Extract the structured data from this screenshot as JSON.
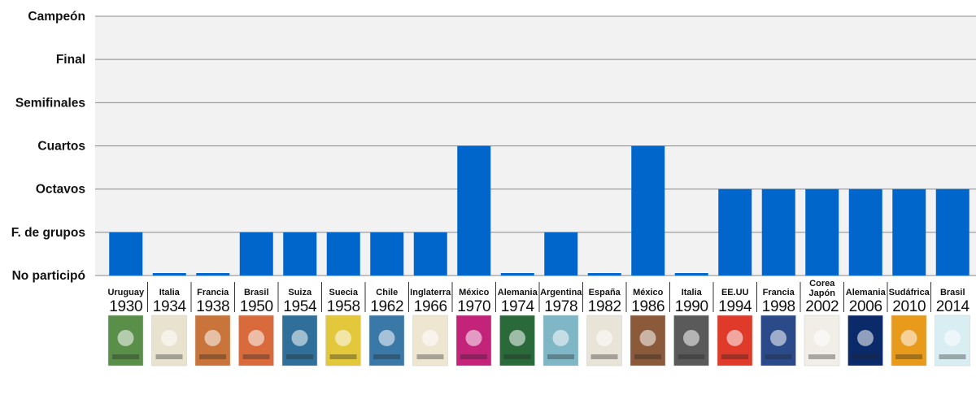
{
  "chart_data": {
    "type": "bar",
    "levels": [
      "No participó",
      "F. de grupos",
      "Octavos",
      "Cuartos",
      "Semifinales",
      "Final",
      "Campeón"
    ],
    "categories": [
      {
        "country": [
          "Uruguay"
        ],
        "year": "1930"
      },
      {
        "country": [
          "Italia"
        ],
        "year": "1934"
      },
      {
        "country": [
          "Francia"
        ],
        "year": "1938"
      },
      {
        "country": [
          "Brasil"
        ],
        "year": "1950"
      },
      {
        "country": [
          "Suiza"
        ],
        "year": "1954"
      },
      {
        "country": [
          "Suecia"
        ],
        "year": "1958"
      },
      {
        "country": [
          "Chile"
        ],
        "year": "1962"
      },
      {
        "country": [
          "Inglaterra"
        ],
        "year": "1966"
      },
      {
        "country": [
          "México"
        ],
        "year": "1970"
      },
      {
        "country": [
          "Alemania"
        ],
        "year": "1974"
      },
      {
        "country": [
          "Argentina"
        ],
        "year": "1978"
      },
      {
        "country": [
          "España"
        ],
        "year": "1982"
      },
      {
        "country": [
          "México"
        ],
        "year": "1986"
      },
      {
        "country": [
          "Italia"
        ],
        "year": "1990"
      },
      {
        "country": [
          "EE.UU"
        ],
        "year": "1994"
      },
      {
        "country": [
          "Francia"
        ],
        "year": "1998"
      },
      {
        "country": [
          "Corea",
          "Japón"
        ],
        "year": "2002"
      },
      {
        "country": [
          "Alemania"
        ],
        "year": "2006"
      },
      {
        "country": [
          "Sudáfrica"
        ],
        "year": "2010"
      },
      {
        "country": [
          "Brasil"
        ],
        "year": "2014"
      }
    ],
    "values": [
      1,
      0,
      0,
      1,
      1,
      1,
      1,
      1,
      3,
      0,
      1,
      0,
      3,
      0,
      2,
      2,
      2,
      2,
      2,
      2
    ],
    "ylim": [
      0,
      6
    ],
    "grid": true,
    "bar_color": "#0066cc",
    "band_color": "#f2f2f2",
    "grid_color": "#888888",
    "poster_colors": [
      "#5a8f4a",
      "#e9e2cf",
      "#c8743a",
      "#d86a3c",
      "#2f6f9a",
      "#e2c83a",
      "#3a78a8",
      "#efe6d2",
      "#c4237a",
      "#2a6a3a",
      "#7fb7c7",
      "#e8e4d8",
      "#8a5a3a",
      "#5a5a5a",
      "#e03a2a",
      "#2a4a8a",
      "#f0eee6",
      "#0a2a6a",
      "#e89a1a",
      "#d8eef2"
    ]
  }
}
